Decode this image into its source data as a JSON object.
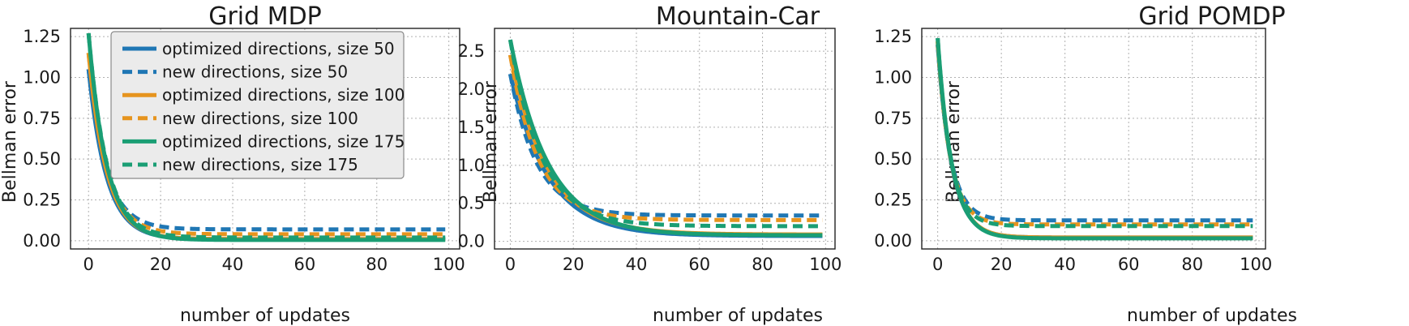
{
  "colors": {
    "size50": "#1f77b4",
    "size100": "#e6941e",
    "size175": "#1a9e74",
    "legend_bg": "#ebebeb"
  },
  "legend": {
    "placement": "top-right of first panel",
    "entries": [
      {
        "label": "optimized directions, size 50",
        "color": "#1f77b4",
        "dashed": false
      },
      {
        "label": "new directions, size 50",
        "color": "#1f77b4",
        "dashed": true
      },
      {
        "label": "optimized directions, size 100",
        "color": "#e6941e",
        "dashed": false
      },
      {
        "label": "new directions, size 100",
        "color": "#e6941e",
        "dashed": true
      },
      {
        "label": "optimized directions, size 175",
        "color": "#1a9e74",
        "dashed": false
      },
      {
        "label": "new directions, size 175",
        "color": "#1a9e74",
        "dashed": true
      }
    ]
  },
  "chart_data": [
    {
      "type": "line",
      "title": "Grid MDP",
      "xlabel": "number of updates",
      "ylabel": "Bellman error",
      "xlim": [
        -5,
        103
      ],
      "ylim": [
        -0.05,
        1.3
      ],
      "xticks": [
        0,
        20,
        40,
        60,
        80,
        100
      ],
      "xtick_labels": [
        "0",
        "20",
        "40",
        "60",
        "80",
        "100"
      ],
      "yticks": [
        0,
        0.25,
        0.5,
        0.75,
        1.0,
        1.25
      ],
      "ytick_labels": [
        "0.00",
        "0.25",
        "0.50",
        "0.75",
        "1.00",
        "1.25"
      ],
      "grid": true,
      "series": [
        {
          "name": "optimized directions, size 50",
          "color": "#1f77b4",
          "dashed": false,
          "start": 1.05,
          "floor": 0.01,
          "k": 5.0
        },
        {
          "name": "new directions, size 50",
          "color": "#1f77b4",
          "dashed": true,
          "start": 1.05,
          "floor": 0.07,
          "k": 5.0
        },
        {
          "name": "optimized directions, size 100",
          "color": "#e6941e",
          "dashed": false,
          "start": 1.15,
          "floor": 0.01,
          "k": 5.0
        },
        {
          "name": "new directions, size 100",
          "color": "#e6941e",
          "dashed": true,
          "start": 1.15,
          "floor": 0.04,
          "k": 5.0
        },
        {
          "name": "optimized directions, size 175",
          "color": "#1a9e74",
          "dashed": false,
          "start": 1.27,
          "floor": 0.005,
          "k": 5.0
        },
        {
          "name": "new directions, size 175",
          "color": "#1a9e74",
          "dashed": true,
          "start": 1.27,
          "floor": 0.02,
          "k": 5.0
        }
      ]
    },
    {
      "type": "line",
      "title": "Mountain-Car",
      "xlabel": "number of updates",
      "ylabel": "Bellman error",
      "xlim": [
        -5,
        103
      ],
      "ylim": [
        -0.1,
        2.8
      ],
      "xticks": [
        0,
        20,
        40,
        60,
        80,
        100
      ],
      "xtick_labels": [
        "0",
        "20",
        "40",
        "60",
        "80",
        "100"
      ],
      "yticks": [
        0,
        0.5,
        1.0,
        1.5,
        2.0,
        2.5
      ],
      "ytick_labels": [
        "0.0",
        "0.5",
        "1.0",
        "1.5",
        "2.0",
        "2.5"
      ],
      "grid": true,
      "series": [
        {
          "name": "optimized directions, size 50",
          "color": "#1f77b4",
          "dashed": false,
          "start": 2.2,
          "floor": 0.07,
          "k": 12.0
        },
        {
          "name": "new directions, size 50",
          "color": "#1f77b4",
          "dashed": true,
          "start": 2.2,
          "floor": 0.34,
          "k": 8.5
        },
        {
          "name": "optimized directions, size 100",
          "color": "#e6941e",
          "dashed": false,
          "start": 2.45,
          "floor": 0.09,
          "k": 12.0
        },
        {
          "name": "new directions, size 100",
          "color": "#e6941e",
          "dashed": true,
          "start": 2.45,
          "floor": 0.28,
          "k": 9.0
        },
        {
          "name": "optimized directions, size 175",
          "color": "#1a9e74",
          "dashed": false,
          "start": 2.65,
          "floor": 0.08,
          "k": 12.0
        },
        {
          "name": "new directions, size 175",
          "color": "#1a9e74",
          "dashed": true,
          "start": 2.65,
          "floor": 0.2,
          "k": 10.0
        }
      ]
    },
    {
      "type": "line",
      "title": "Grid POMDP",
      "xlabel": "number of updates",
      "ylabel": "Bellman error",
      "xlim": [
        -5,
        103
      ],
      "ylim": [
        -0.05,
        1.3
      ],
      "xticks": [
        0,
        20,
        40,
        60,
        80,
        100
      ],
      "xtick_labels": [
        "0",
        "20",
        "40",
        "60",
        "80",
        "100"
      ],
      "yticks": [
        0,
        0.25,
        0.5,
        0.75,
        1.0,
        1.25
      ],
      "ytick_labels": [
        "0.00",
        "0.25",
        "0.50",
        "0.75",
        "1.00",
        "1.25"
      ],
      "grid": true,
      "series": [
        {
          "name": "optimized directions, size 50",
          "color": "#1f77b4",
          "dashed": false,
          "start": 1.2,
          "floor": 0.02,
          "k": 4.5
        },
        {
          "name": "new directions, size 50",
          "color": "#1f77b4",
          "dashed": true,
          "start": 1.2,
          "floor": 0.125,
          "k": 4.0
        },
        {
          "name": "optimized directions, size 100",
          "color": "#e6941e",
          "dashed": false,
          "start": 1.22,
          "floor": 0.02,
          "k": 4.5
        },
        {
          "name": "new directions, size 100",
          "color": "#e6941e",
          "dashed": true,
          "start": 1.22,
          "floor": 0.1,
          "k": 4.0
        },
        {
          "name": "optimized directions, size 175",
          "color": "#1a9e74",
          "dashed": false,
          "start": 1.24,
          "floor": 0.015,
          "k": 4.5
        },
        {
          "name": "new directions, size 175",
          "color": "#1a9e74",
          "dashed": true,
          "start": 1.24,
          "floor": 0.09,
          "k": 4.0
        }
      ]
    }
  ]
}
